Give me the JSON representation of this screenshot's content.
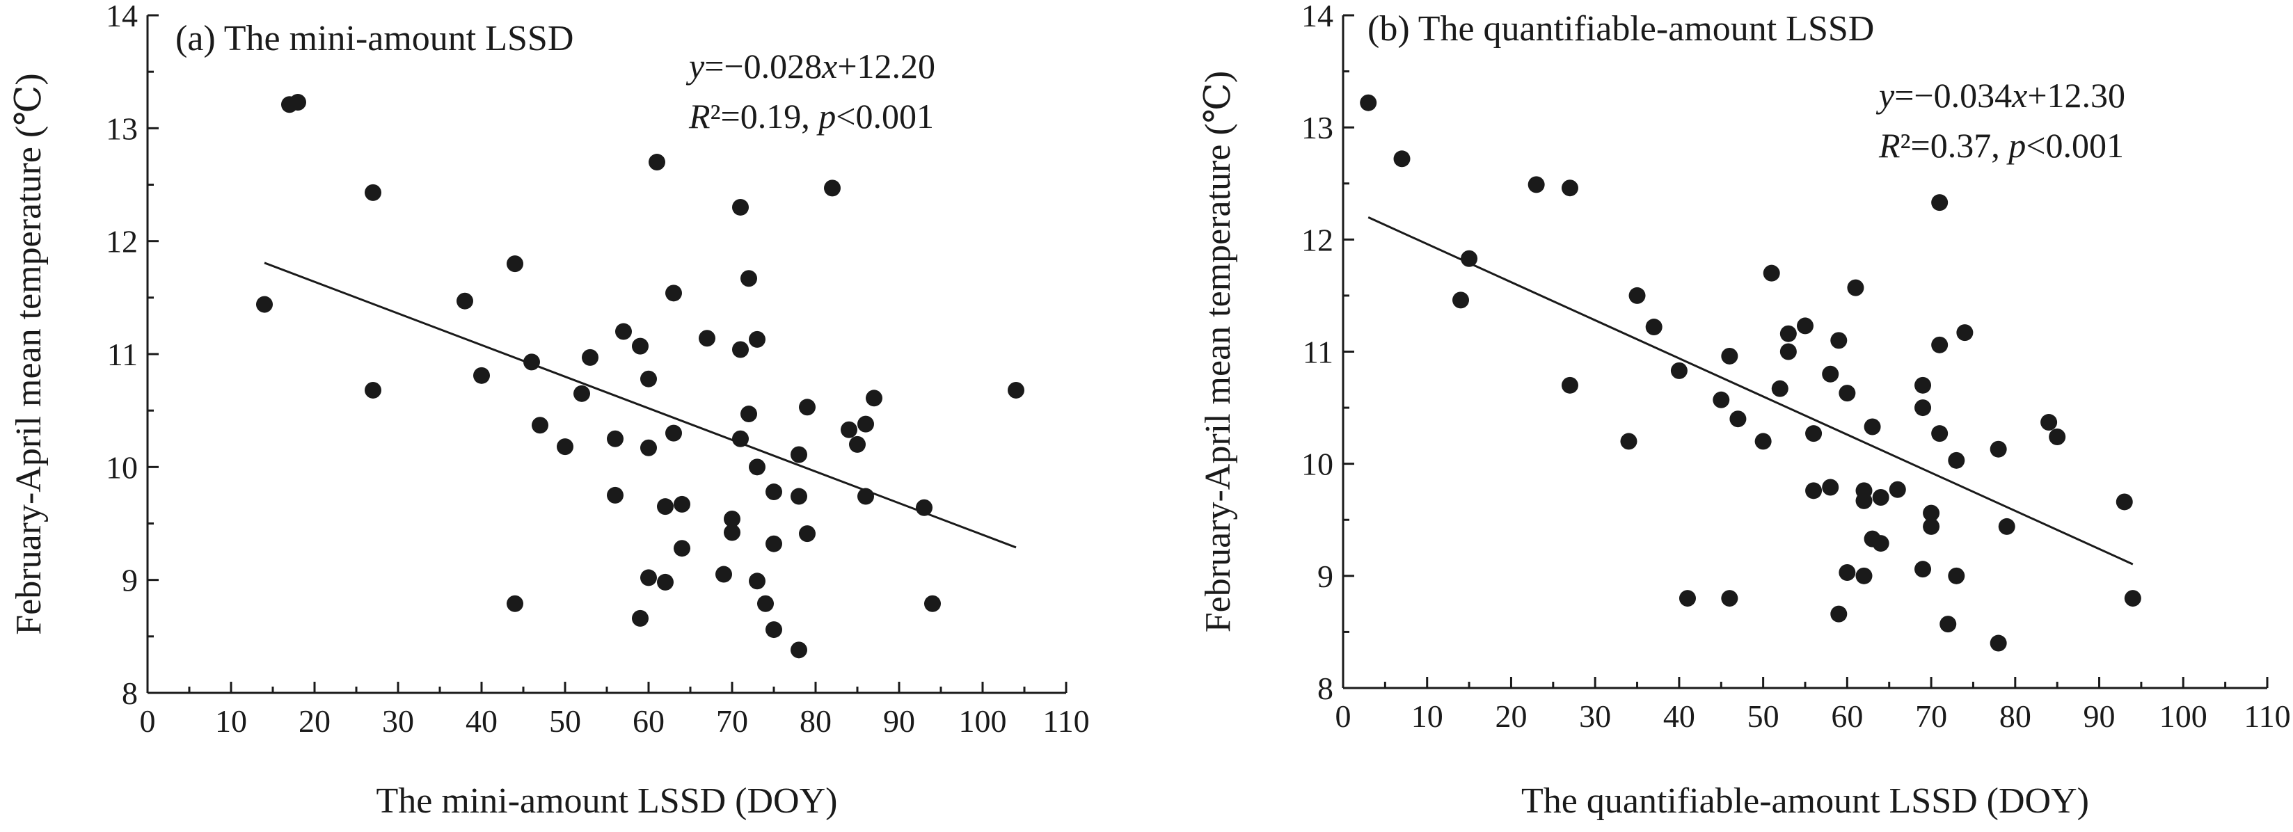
{
  "chart_data": [
    {
      "type": "scatter",
      "title": "(a) The mini-amount LSSD",
      "xlabel": "The mini-amount LSSD (DOY)",
      "ylabel": "February-April mean temperature (℃)",
      "xlim": [
        0,
        110
      ],
      "ylim": [
        8,
        14
      ],
      "xticks": [
        0,
        10,
        20,
        30,
        40,
        50,
        60,
        70,
        80,
        90,
        100,
        110
      ],
      "yticks": [
        8,
        9,
        10,
        11,
        12,
        13,
        14
      ],
      "grid": false,
      "equation_y": "y=−0.028x+12.20",
      "equation_r2": "R²=0.19, p<0.001",
      "fit": {
        "slope": -0.028,
        "intercept": 12.2,
        "x_range": [
          14,
          104
        ]
      },
      "points": [
        [
          14,
          11.44
        ],
        [
          17,
          13.21
        ],
        [
          18,
          13.23
        ],
        [
          27,
          12.43
        ],
        [
          27,
          10.68
        ],
        [
          38,
          11.47
        ],
        [
          40,
          10.81
        ],
        [
          44,
          11.8
        ],
        [
          44,
          8.79
        ],
        [
          46,
          10.93
        ],
        [
          47,
          10.37
        ],
        [
          50,
          10.18
        ],
        [
          52,
          10.65
        ],
        [
          53,
          10.97
        ],
        [
          56,
          10.25
        ],
        [
          56,
          9.75
        ],
        [
          57,
          11.2
        ],
        [
          59,
          11.07
        ],
        [
          59,
          8.66
        ],
        [
          60,
          10.78
        ],
        [
          60,
          10.17
        ],
        [
          60,
          9.02
        ],
        [
          61,
          12.7
        ],
        [
          62,
          9.65
        ],
        [
          62,
          8.98
        ],
        [
          63,
          11.54
        ],
        [
          63,
          10.3
        ],
        [
          64,
          9.67
        ],
        [
          64,
          9.28
        ],
        [
          67,
          11.14
        ],
        [
          69,
          9.05
        ],
        [
          70,
          9.54
        ],
        [
          70,
          9.42
        ],
        [
          71,
          12.3
        ],
        [
          71,
          11.04
        ],
        [
          71,
          10.25
        ],
        [
          72,
          11.67
        ],
        [
          72,
          10.47
        ],
        [
          73,
          11.13
        ],
        [
          73,
          10.0
        ],
        [
          73,
          8.99
        ],
        [
          74,
          8.79
        ],
        [
          75,
          9.78
        ],
        [
          75,
          9.32
        ],
        [
          75,
          8.56
        ],
        [
          78,
          10.11
        ],
        [
          78,
          9.74
        ],
        [
          78,
          8.38
        ],
        [
          79,
          10.53
        ],
        [
          79,
          9.41
        ],
        [
          82,
          12.47
        ],
        [
          84,
          10.33
        ],
        [
          85,
          10.2
        ],
        [
          86,
          10.38
        ],
        [
          86,
          9.74
        ],
        [
          87,
          10.61
        ],
        [
          93,
          9.64
        ],
        [
          94,
          8.79
        ],
        [
          104,
          10.68
        ]
      ]
    },
    {
      "type": "scatter",
      "title": "(b) The quantifiable-amount LSSD",
      "xlabel": "The quantifiable-amount LSSD (DOY)",
      "ylabel": "February-April mean temperature (℃)",
      "xlim": [
        0,
        110
      ],
      "ylim": [
        8,
        14
      ],
      "xticks": [
        0,
        10,
        20,
        30,
        40,
        50,
        60,
        70,
        80,
        90,
        100,
        110
      ],
      "yticks": [
        8,
        9,
        10,
        11,
        12,
        13,
        14
      ],
      "grid": false,
      "equation_y": "y=−0.034x+12.30",
      "equation_r2": "R²=0.37, p<0.001",
      "fit": {
        "slope": -0.034,
        "intercept": 12.3,
        "x_range": [
          3,
          94
        ]
      },
      "points": [
        [
          3,
          13.22
        ],
        [
          7,
          12.72
        ],
        [
          14,
          11.46
        ],
        [
          15,
          11.83
        ],
        [
          23,
          12.49
        ],
        [
          27,
          12.46
        ],
        [
          27,
          10.7
        ],
        [
          34,
          10.2
        ],
        [
          35,
          11.5
        ],
        [
          37,
          11.22
        ],
        [
          40,
          10.83
        ],
        [
          41,
          8.8
        ],
        [
          45,
          10.57
        ],
        [
          46,
          10.96
        ],
        [
          46,
          8.8
        ],
        [
          47,
          10.4
        ],
        [
          50,
          10.2
        ],
        [
          51,
          11.7
        ],
        [
          52,
          10.67
        ],
        [
          53,
          11.16
        ],
        [
          53,
          11.0
        ],
        [
          55,
          11.23
        ],
        [
          56,
          10.27
        ],
        [
          56,
          9.76
        ],
        [
          58,
          10.8
        ],
        [
          58,
          9.79
        ],
        [
          59,
          11.1
        ],
        [
          59,
          8.66
        ],
        [
          60,
          10.63
        ],
        [
          60,
          9.03
        ],
        [
          61,
          11.57
        ],
        [
          62,
          9.76
        ],
        [
          62,
          9.67
        ],
        [
          62,
          9.0
        ],
        [
          63,
          10.33
        ],
        [
          63,
          9.33
        ],
        [
          64,
          9.7
        ],
        [
          64,
          9.29
        ],
        [
          66,
          9.77
        ],
        [
          69,
          10.7
        ],
        [
          69,
          10.5
        ],
        [
          69,
          9.06
        ],
        [
          70,
          9.56
        ],
        [
          70,
          9.44
        ],
        [
          71,
          12.33
        ],
        [
          71,
          11.06
        ],
        [
          71,
          10.27
        ],
        [
          72,
          8.57
        ],
        [
          73,
          10.03
        ],
        [
          73,
          9.0
        ],
        [
          74,
          11.17
        ],
        [
          78,
          10.13
        ],
        [
          78,
          8.4
        ],
        [
          79,
          9.44
        ],
        [
          84,
          10.37
        ],
        [
          85,
          10.24
        ],
        [
          93,
          9.66
        ],
        [
          94,
          8.8
        ]
      ]
    }
  ]
}
